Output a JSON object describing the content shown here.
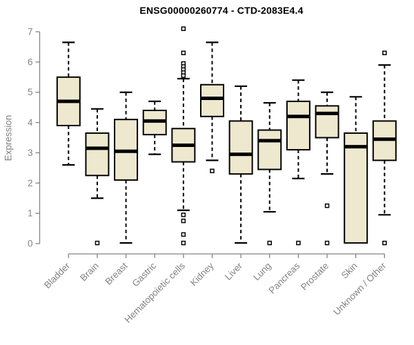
{
  "chart_data": {
    "type": "boxplot",
    "title": "ENSG00000260774 - CTD-2083E4.4",
    "ylabel": "Expression",
    "xlabel": "",
    "ylim": [
      0,
      7
    ],
    "yticks": [
      0,
      1,
      2,
      3,
      4,
      5,
      6,
      7
    ],
    "grid": false,
    "legend": "none",
    "colors": {
      "box_fill": "#EDE8CE",
      "box_line": "#000000",
      "axis": "#828282",
      "title": "#000000",
      "background": "#FFFFFF"
    },
    "categories": [
      "Bladder",
      "Brain",
      "Breast",
      "Gastric",
      "Hematopoietic cells",
      "Kidney",
      "Liver",
      "Lung",
      "Pancreas",
      "Prostate",
      "Skin",
      "Unknown / Other"
    ],
    "series": [
      {
        "category": "Bladder",
        "whisker_low": 2.6,
        "q1": 3.9,
        "median": 4.7,
        "q3": 5.5,
        "whisker_high": 6.65,
        "outliers": []
      },
      {
        "category": "Brain",
        "whisker_low": 1.5,
        "q1": 2.25,
        "median": 3.15,
        "q3": 3.65,
        "whisker_high": 4.45,
        "outliers": [
          0.02
        ]
      },
      {
        "category": "Breast",
        "whisker_low": 0.02,
        "q1": 2.1,
        "median": 3.05,
        "q3": 4.1,
        "whisker_high": 5.0,
        "outliers": []
      },
      {
        "category": "Gastric",
        "whisker_low": 2.95,
        "q1": 3.6,
        "median": 4.05,
        "q3": 4.4,
        "whisker_high": 4.7,
        "outliers": []
      },
      {
        "category": "Hematopoietic cells",
        "whisker_low": 1.1,
        "q1": 2.7,
        "median": 3.25,
        "q3": 3.8,
        "whisker_high": 5.45,
        "outliers": [
          7.1,
          6.3,
          5.95,
          5.85,
          5.75,
          5.65,
          5.55,
          0.95,
          0.75,
          0.3,
          0.02
        ]
      },
      {
        "category": "Kidney",
        "whisker_low": 2.75,
        "q1": 4.2,
        "median": 4.8,
        "q3": 5.25,
        "whisker_high": 6.65,
        "outliers": [
          2.4
        ]
      },
      {
        "category": "Liver",
        "whisker_low": 0.02,
        "q1": 2.3,
        "median": 2.95,
        "q3": 4.05,
        "whisker_high": 5.2,
        "outliers": []
      },
      {
        "category": "Lung",
        "whisker_low": 1.05,
        "q1": 2.45,
        "median": 3.4,
        "q3": 3.75,
        "whisker_high": 4.65,
        "outliers": [
          0.02
        ]
      },
      {
        "category": "Pancreas",
        "whisker_low": 2.15,
        "q1": 3.1,
        "median": 4.2,
        "q3": 4.7,
        "whisker_high": 5.4,
        "outliers": [
          0.02
        ]
      },
      {
        "category": "Prostate",
        "whisker_low": 2.3,
        "q1": 3.5,
        "median": 4.3,
        "q3": 4.55,
        "whisker_high": 5.0,
        "outliers": [
          1.25,
          0.02
        ]
      },
      {
        "category": "Skin",
        "whisker_low": 0.02,
        "q1": 0.02,
        "median": 3.2,
        "q3": 3.65,
        "whisker_high": 4.85,
        "outliers": []
      },
      {
        "category": "Unknown / Other",
        "whisker_low": 0.95,
        "q1": 2.75,
        "median": 3.45,
        "q3": 4.05,
        "whisker_high": 5.9,
        "outliers": [
          6.3,
          0.02
        ]
      }
    ]
  }
}
